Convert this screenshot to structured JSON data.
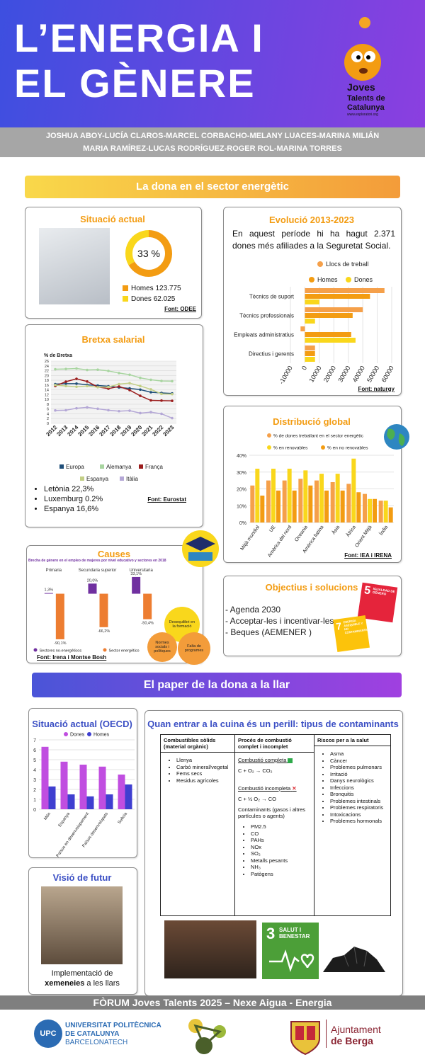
{
  "header": {
    "title_lines": [
      "L’ENERGIA I",
      "EL GÈNERE"
    ],
    "logo": {
      "brand_lines": [
        "Joves",
        "Talents de",
        "Catalunya"
      ],
      "url": "www.exploratori.org"
    }
  },
  "authors": [
    "JOSHUA ABOY-LUCÍA CLAROS-MARCEL CORBACHO-MELANY LUACES-MARINA MILIÁN",
    "MARIA RAMÍREZ-LUCAS RODRÍGUEZ-ROGER ROL-MARINA TORRES"
  ],
  "section1": {
    "title": "La dona en el sector energètic",
    "situacio": {
      "title": "Situació actual",
      "source": "Font: ODEE",
      "chart": {
        "type": "donut",
        "center_label": {
          "value": 33,
          "label": "33 %"
        },
        "series": [
          {
            "name": "Homes",
            "value": 123775,
            "value_label": "123.775",
            "color": "#f39c12"
          },
          {
            "name": "Dones",
            "value": 62025,
            "value_label": "62.025",
            "color": "#f9d71c"
          }
        ]
      }
    },
    "evolucio": {
      "title": "Evolució 2013-2023",
      "text": "En aquest període hi ha hagut 2.371 dones més afiliades a la Seguretat Social.",
      "source": "Font: naturgy",
      "chart": {
        "type": "hbar",
        "categories": [
          "Tècnics de suport",
          "Tècnics professionals",
          "Empleats administratius",
          "Directius i gerents"
        ],
        "series": [
          {
            "name": "Llocs de treball",
            "color": "#f5a04a",
            "values": [
              55000,
              40000,
              -3000,
              7000
            ]
          },
          {
            "name": "Homes",
            "color": "#f39c12",
            "values": [
              45000,
              33000,
              32000,
              7000
            ]
          },
          {
            "name": "Dones",
            "color": "#f9d71c",
            "values": [
              10000,
              7000,
              35000,
              7000
            ]
          }
        ],
        "xlim": [
          -10000,
          60000
        ],
        "xticks": [
          -10000,
          0,
          10000,
          20000,
          30000,
          40000,
          50000,
          60000
        ],
        "grid": true
      }
    },
    "bretxa": {
      "title": "Bretxa salarial",
      "source": "Font: Eurostat",
      "highlights": [
        "Letònia 22,3%",
        "Luxemburg 0.2%",
        "Espanya 16,6%"
      ],
      "chart": {
        "type": "line",
        "y_label": "% de Bretxa",
        "x": [
          2012,
          2013,
          2014,
          2015,
          2016,
          2017,
          2018,
          2019,
          2020,
          2021,
          2022,
          2023
        ],
        "series": [
          {
            "name": "Europa",
            "color": "#1f4e79",
            "values": [
              16.4,
              16.6,
              16.6,
              16.1,
              15.8,
              15.5,
              15.0,
              14.6,
              14.1,
              13.0,
              12.7,
              12.5
            ]
          },
          {
            "name": "Alemanya",
            "color": "#a8d5a0",
            "values": [
              22.6,
              22.7,
              22.9,
              22.3,
              22.4,
              21.9,
              21.0,
              20.3,
              19.0,
              18.2,
              17.7,
              17.6
            ]
          },
          {
            "name": "França",
            "color": "#9b1c1c",
            "values": [
              15.6,
              17.4,
              18.6,
              17.5,
              15.2,
              14.5,
              15.4,
              13.9,
              11.5,
              9.6,
              9.5,
              9.4
            ]
          },
          {
            "name": "Espanya",
            "color": "#c3cf86",
            "values": [
              16.0,
              15.6,
              15.3,
              15.6,
              15.1,
              15.2,
              16.4,
              16.8,
              15.6,
              14.2,
              12.3,
              12.2
            ]
          },
          {
            "name": "Itàlia",
            "color": "#b4a7d6",
            "values": [
              5.4,
              5.5,
              6.3,
              6.7,
              6.1,
              5.5,
              5.1,
              5.3,
              4.3,
              4.7,
              4.0,
              2.2
            ]
          }
        ],
        "xlim": [
          2012,
          2023
        ],
        "ylim": [
          0,
          26
        ],
        "yticks": [
          0,
          2,
          4,
          6,
          8,
          10,
          12,
          14,
          16,
          18,
          20,
          22,
          24,
          26
        ],
        "grid": true
      }
    },
    "distribucio": {
      "title": "Distribució global",
      "source": "Font: IEA i IRENA",
      "chart": {
        "type": "bar",
        "categories": [
          "Mitjà mundial",
          "UE",
          "Amèrica del nord",
          "Oceania",
          "Amèrica llatina",
          "Àsia",
          "Àfrica",
          "Orient Mitjà",
          "Índia"
        ],
        "series": [
          {
            "name": "% de dones treballant en el sector energètic",
            "color": "#f5a04a",
            "values": [
              22,
              25,
              25,
              26,
              25,
              24,
              23,
              17,
              13
            ]
          },
          {
            "name": "% en renovables",
            "color": "#f9d71c",
            "values": [
              32,
              32,
              32,
              31,
              29,
              29,
              38,
              14,
              13
            ]
          },
          {
            "name": "% en no renovables",
            "color": "#f39c12",
            "values": [
              16,
              19,
              19,
              22,
              19,
              19,
              18,
              14,
              9
            ]
          }
        ],
        "ylim": [
          0,
          40
        ],
        "yticks": [
          {
            "value": 0,
            "label": "0%"
          },
          {
            "value": 10,
            "label": "10%"
          },
          {
            "value": 20,
            "label": "20%"
          },
          {
            "value": 30,
            "label": "30%"
          },
          {
            "value": 40,
            "label": "40%"
          }
        ],
        "grid": true
      }
    },
    "causes": {
      "title": "Causes",
      "source": "Font: Irena i Montse Bosh",
      "factors": [
        "Desequilibri en la formació",
        "Normes socials i polítiques",
        "Falta de programes"
      ],
      "chart": {
        "type": "bar",
        "title": "Brecha de género en el empleo de mujeres por nivel educativo y sectores en 2018",
        "categories": [
          "Primaria",
          "Secundaria superior",
          "Universitaria"
        ],
        "series": [
          {
            "name": "Sectores no-energéticos",
            "color": "#7030a0",
            "values": [
              1.3,
              20.0,
              33.1
            ],
            "value_labels": [
              "1,3%",
              "20,0%",
              "33,1%"
            ]
          },
          {
            "name": "Sector energético",
            "color": "#ed7d31",
            "values": [
              -90.1,
              -66.2,
              -50.4
            ],
            "value_labels": [
              "-90,1%",
              "-66,2%",
              "-50,4%"
            ]
          }
        ],
        "ylim": [
          -100,
          40
        ]
      }
    },
    "objectius": {
      "title": "Objectius i solucions",
      "items": [
        "- Agenda 2030",
        "- Acceptar-les i incentivar-les",
        "- Beques (AEMENER )"
      ],
      "sdg_icons": [
        {
          "number": 5,
          "label": "IGUALDAD DE GÉNERO"
        },
        {
          "number": 7,
          "label": "ENERGÍA ASEQUIBLE Y NO CONTAMINANTE"
        }
      ]
    }
  },
  "section2": {
    "title": "El paper de la dona a la llar",
    "oecd": {
      "title": "Situació actual (OECD)",
      "chart": {
        "type": "bar",
        "categories": [
          "Món",
          "Espanya",
          "Països en desenvolupament",
          "Països desenvolupats",
          "Suècia"
        ],
        "series": [
          {
            "name": "Dones",
            "color": "#c04ee0",
            "values": [
              6.3,
              4.8,
              4.5,
              4.3,
              3.5
            ]
          },
          {
            "name": "Homes",
            "color": "#3f3fd0",
            "values": [
              2.3,
              1.5,
              1.3,
              1.5,
              2.5
            ]
          }
        ],
        "ylim": [
          0,
          7
        ],
        "yticks": [
          0,
          1,
          2,
          3,
          4,
          5,
          6,
          7
        ],
        "grid": true
      }
    },
    "contaminants": {
      "title": "Quan entrar a la cuina és un perill: tipus de contaminants",
      "table": {
        "headers": [
          "Combustibles sòlids (material orgànic)",
          "Procés de combustió complet i incomplet",
          "Riscos per a la salut"
        ],
        "fuels": [
          "Llenya",
          "Carbó mineral/vegetal",
          "Fems secs",
          "Residus agrícoles"
        ],
        "combustion": {
          "complete_label": "Combustió completa",
          "complete_formula": "C + O₂ → CO₂",
          "incomplete_label": "Combustió incompleta",
          "incomplete_formula": "C + ½ O₂ → CO",
          "contaminants_label": "Contaminants (gasos i altres partícules o agents)",
          "contaminants": [
            "PM2.5",
            "CO",
            "PAHs",
            "NOx",
            "SO₂",
            "Metalls pesants",
            "NH₃",
            "Patògens"
          ]
        },
        "risks": [
          "Asma",
          "Càncer",
          "Problemes pulmonars",
          "Irritació",
          "Danys neurològics",
          "Infeccions",
          "Bronquitis",
          "Problemes intestinals",
          "Problemes respiratoris",
          "Intoxicacions",
          "Problemes hormonals"
        ]
      }
    },
    "visio": {
      "title": "Visió de futur",
      "caption": [
        "Implementació de",
        "xemeneies",
        " a les llars"
      ]
    },
    "sdg3": {
      "number": 3,
      "label": "SALUT I BENESTAR"
    }
  },
  "footer": {
    "text": "FÒRUM Joves Talents 2025 – Nexe Aigua - Energia",
    "upc": {
      "abbr": "UPC",
      "lines": [
        "UNIVERSITAT POLITÈCNICA",
        "DE CATALUNYA"
      ],
      "sub": "BARCELONATECH"
    },
    "berga": [
      "Ajuntament",
      "de Berga"
    ]
  }
}
